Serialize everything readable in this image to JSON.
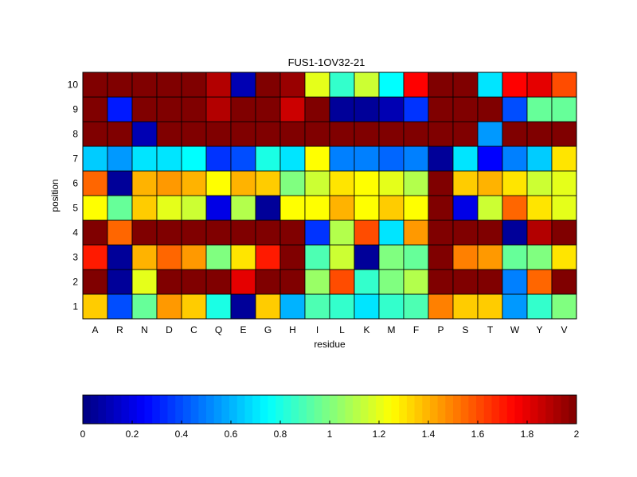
{
  "chart_data": {
    "type": "heatmap",
    "title": "FUS1-1OV32-21",
    "xlabel": "residue",
    "ylabel": "position",
    "categories": [
      "A",
      "R",
      "N",
      "D",
      "C",
      "Q",
      "E",
      "G",
      "H",
      "I",
      "L",
      "K",
      "M",
      "F",
      "P",
      "S",
      "T",
      "W",
      "Y",
      "V"
    ],
    "rows": [
      1,
      2,
      3,
      4,
      5,
      6,
      7,
      8,
      9,
      10
    ],
    "values": [
      [
        1.35,
        0.4,
        0.95,
        1.45,
        1.35,
        0.8,
        0.05,
        1.35,
        0.6,
        0.9,
        0.85,
        0.7,
        0.85,
        0.9,
        1.5,
        1.35,
        1.35,
        0.55,
        0.85,
        1.0
      ],
      [
        2.0,
        0.05,
        1.2,
        2.0,
        2.0,
        2.0,
        1.8,
        2.0,
        2.0,
        1.05,
        1.6,
        0.85,
        1.0,
        1.1,
        2.0,
        2.0,
        2.0,
        0.5,
        1.55,
        2.0
      ],
      [
        1.7,
        0.05,
        1.4,
        1.55,
        1.45,
        1.0,
        1.3,
        1.7,
        2.0,
        0.9,
        1.15,
        0.05,
        1.0,
        0.95,
        2.0,
        1.5,
        1.45,
        0.95,
        1.0,
        1.3
      ],
      [
        2.0,
        1.55,
        2.0,
        2.0,
        2.0,
        2.0,
        2.0,
        2.0,
        2.0,
        0.35,
        1.1,
        1.6,
        0.7,
        1.45,
        2.0,
        2.0,
        2.0,
        0.05,
        1.9,
        2.0
      ],
      [
        1.25,
        0.95,
        1.35,
        1.2,
        1.15,
        0.2,
        1.1,
        0.05,
        1.25,
        1.25,
        1.4,
        1.25,
        1.35,
        1.25,
        2.0,
        0.2,
        1.15,
        1.55,
        1.3,
        1.2
      ],
      [
        1.55,
        0.05,
        1.4,
        1.45,
        1.4,
        1.25,
        1.4,
        1.35,
        1.0,
        1.15,
        1.3,
        1.25,
        1.2,
        1.1,
        2.0,
        1.35,
        1.4,
        1.3,
        1.15,
        1.2
      ],
      [
        0.65,
        0.55,
        0.7,
        0.7,
        0.75,
        0.35,
        0.4,
        0.8,
        0.7,
        1.25,
        0.5,
        0.5,
        0.45,
        0.5,
        0.05,
        0.7,
        0.25,
        0.5,
        0.65,
        1.3
      ],
      [
        2.0,
        2.0,
        0.1,
        2.0,
        2.0,
        2.0,
        2.0,
        2.0,
        2.0,
        2.0,
        2.0,
        2.0,
        2.0,
        2.0,
        2.0,
        2.0,
        0.55,
        2.0,
        2.0,
        2.0
      ],
      [
        2.0,
        0.3,
        2.0,
        2.0,
        2.0,
        1.9,
        2.0,
        2.0,
        1.85,
        2.0,
        0.05,
        0.05,
        0.1,
        0.35,
        2.0,
        2.0,
        2.0,
        0.4,
        0.95,
        0.95
      ],
      [
        2.0,
        2.0,
        2.0,
        2.0,
        2.0,
        1.9,
        0.1,
        2.0,
        1.95,
        1.2,
        0.85,
        1.15,
        0.75,
        1.75,
        2.0,
        2.0,
        0.7,
        1.75,
        1.8,
        1.6
      ]
    ],
    "clim": [
      0,
      2
    ],
    "colormap": "jet",
    "colorbar": {
      "position": "bottom",
      "ticks": [
        0,
        0.2,
        0.4,
        0.6,
        0.8,
        1,
        1.2,
        1.4,
        1.6,
        1.8,
        2
      ],
      "tick_labels": [
        "0",
        "0.2",
        "0.4",
        "0.6",
        "0.8",
        "1",
        "1.2",
        "1.4",
        "1.6",
        "1.8",
        "2"
      ]
    },
    "grid": true
  }
}
